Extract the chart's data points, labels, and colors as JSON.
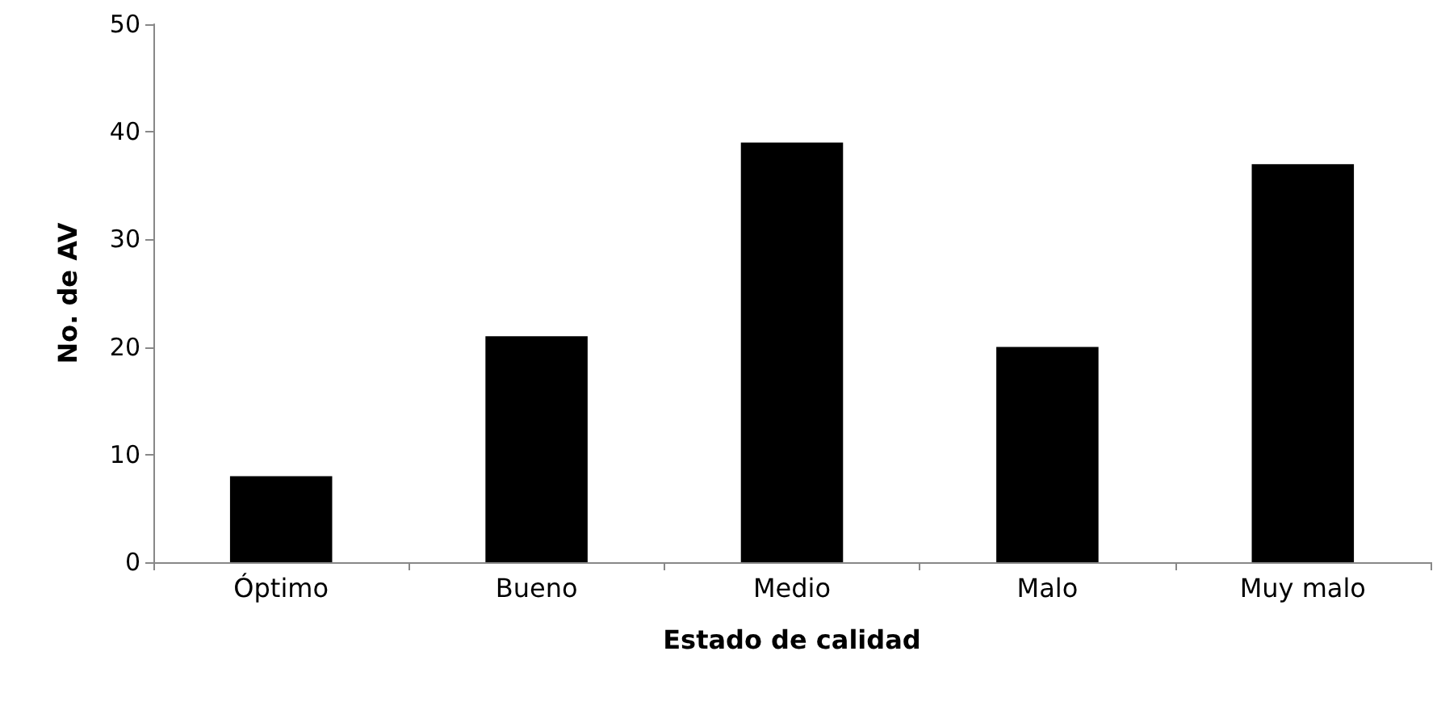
{
  "chart_data": {
    "type": "bar",
    "xlabel": "Estado de calidad",
    "ylabel": "No. de AV",
    "categories": [
      "Óptimo",
      "Bueno",
      "Medio",
      "Malo",
      "Muy malo"
    ],
    "values": [
      8,
      21,
      39,
      20,
      37
    ],
    "color": "#000000",
    "ylim": [
      0,
      50
    ],
    "yticks": [
      0,
      10,
      20,
      30,
      40,
      50
    ],
    "grid": false
  }
}
